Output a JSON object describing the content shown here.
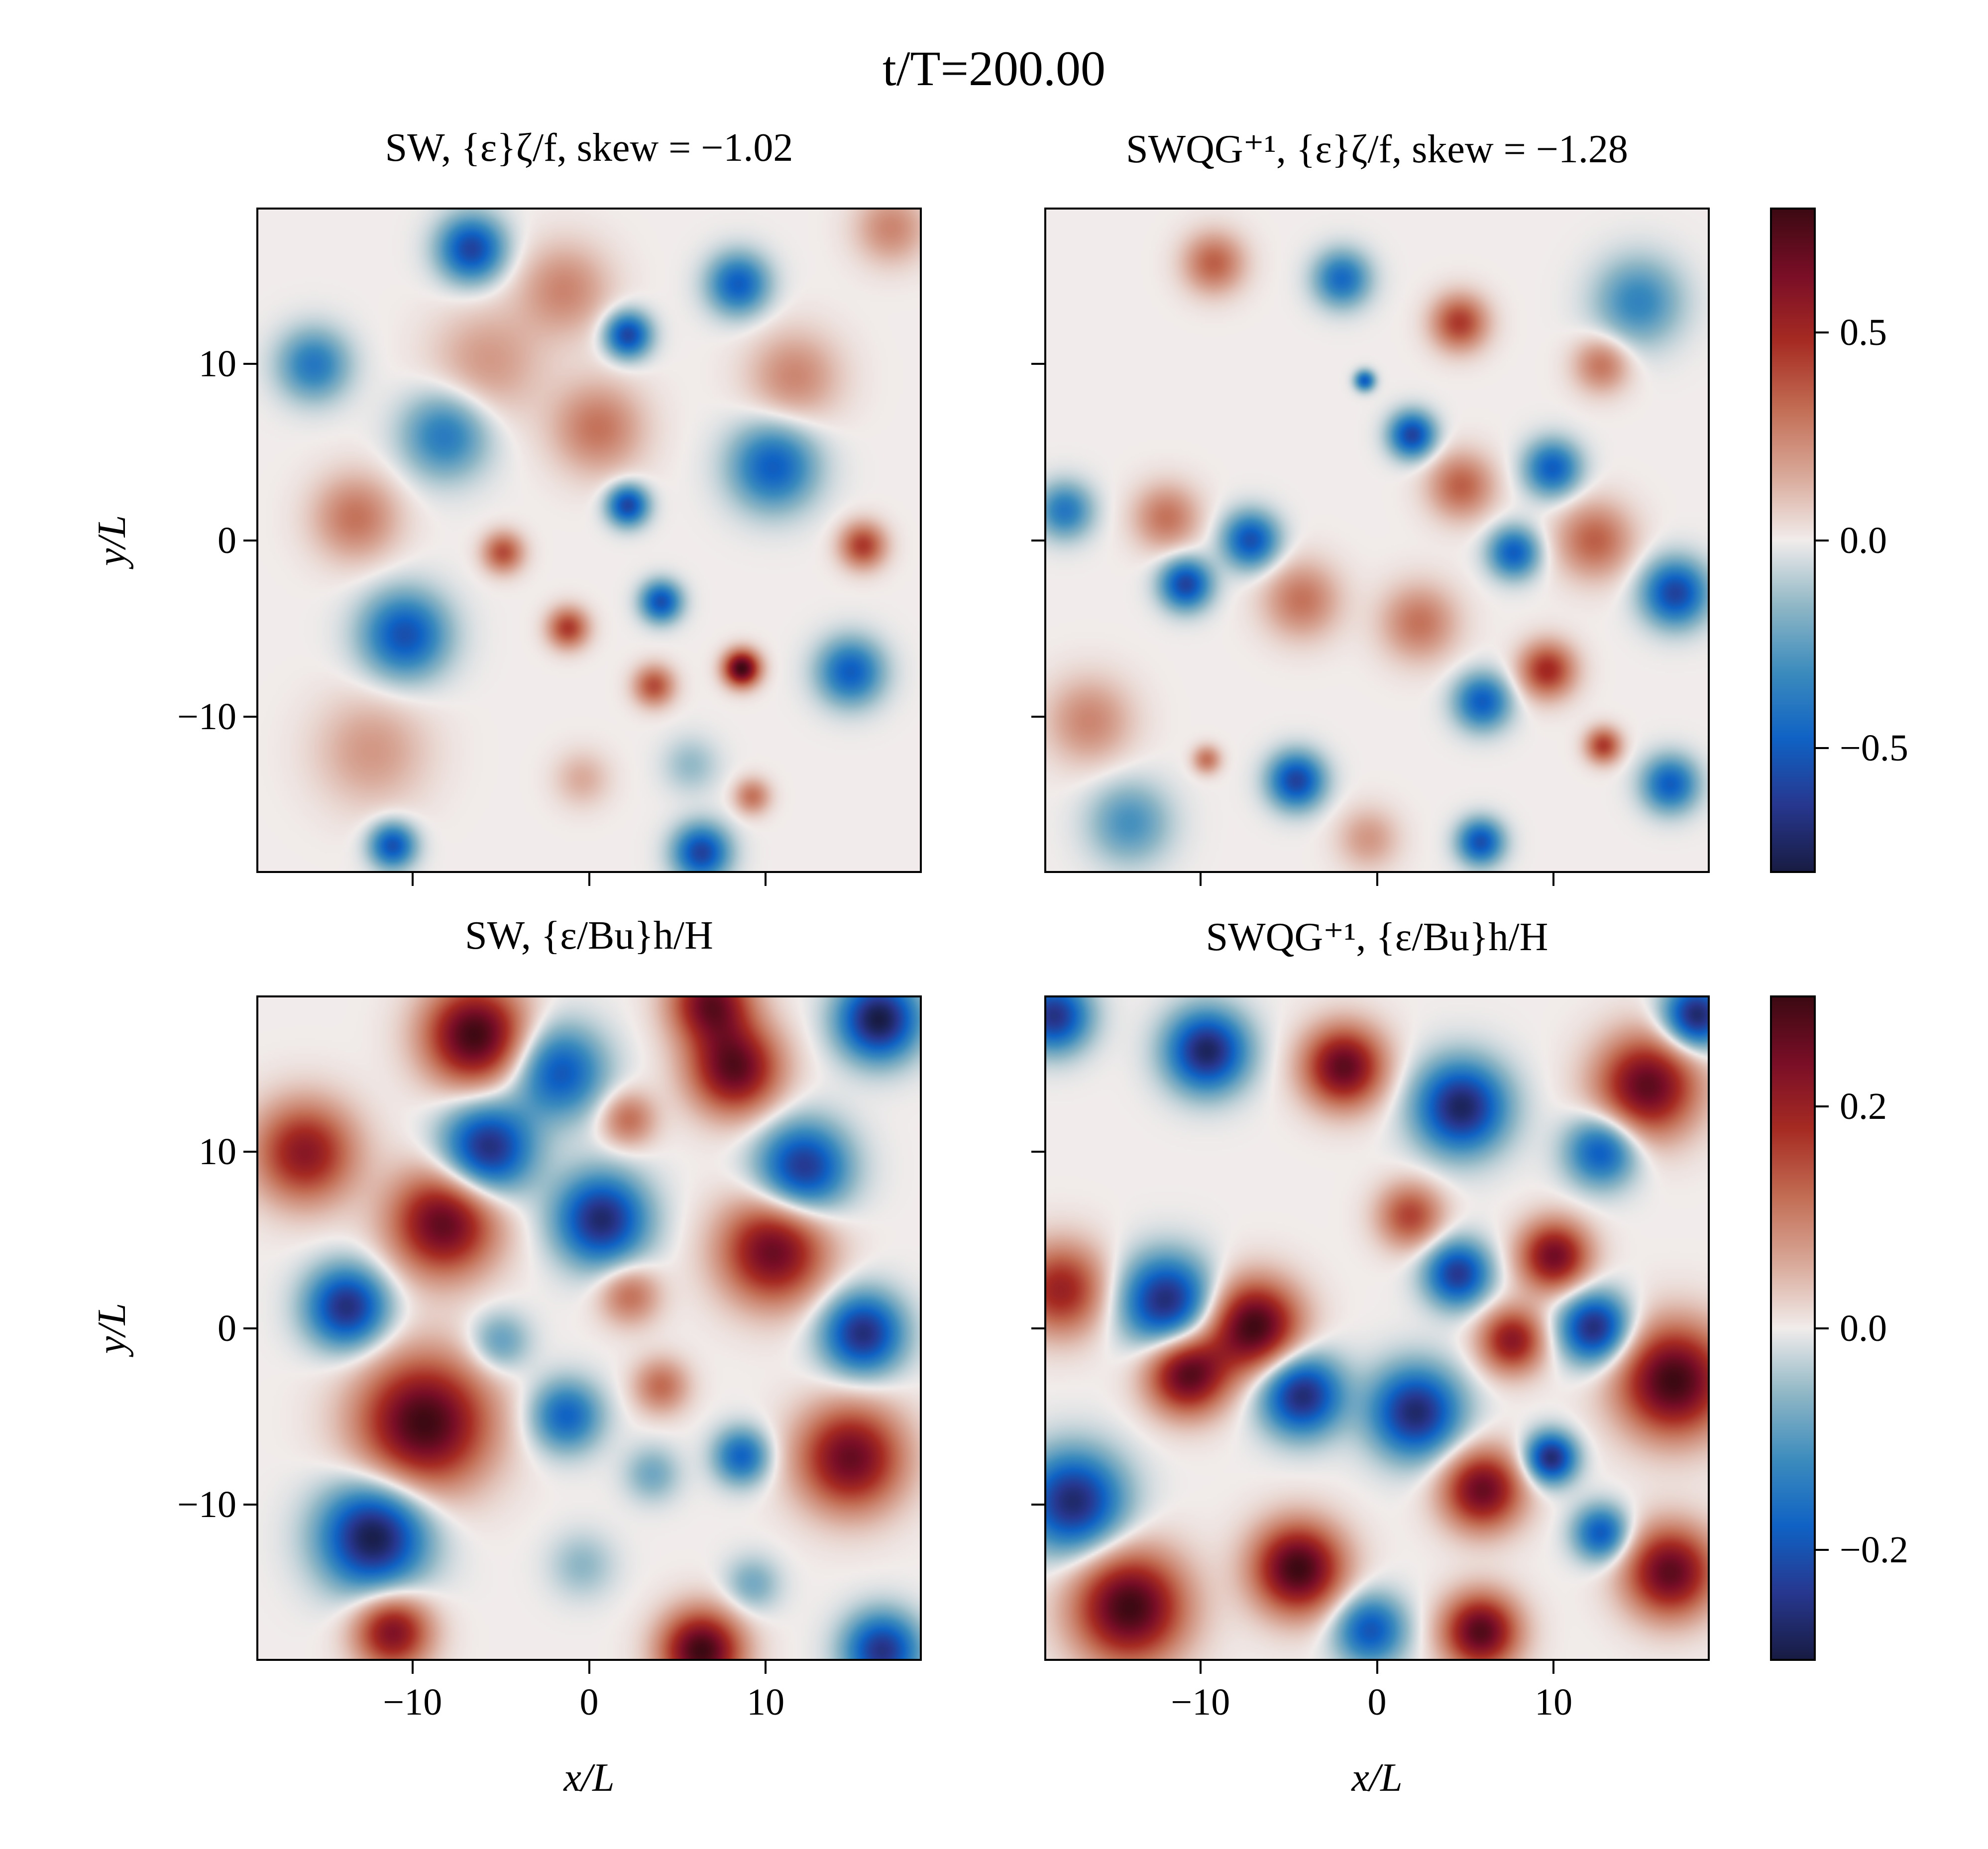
{
  "chart_data": {
    "type": "heatmap",
    "title": "t/T=200.00",
    "panels": [
      {
        "id": "tl",
        "title": "SW, {ε}ζ/f, skew = −1.02",
        "xlabel": "",
        "ylabel": "y/L",
        "xlim": [
          -18.85,
          18.85
        ],
        "ylim": [
          -18.85,
          18.85
        ],
        "xticks": [
          -10,
          0,
          10
        ],
        "xtick_labels": [],
        "yticks": [
          -10,
          0,
          10
        ],
        "ytick_labels": [
          "−10",
          "0",
          "10"
        ],
        "colorbar": 0,
        "features": [
          [
            -6.7,
            16.6,
            -0.6,
            1.3
          ],
          [
            -1.4,
            14.3,
            0.25,
            1.8
          ],
          [
            8.5,
            14.6,
            -0.5,
            1.2
          ],
          [
            17.2,
            17.8,
            0.25,
            1.4
          ],
          [
            2.2,
            11.7,
            -0.6,
            0.9
          ],
          [
            -15.7,
            10,
            -0.4,
            1.4
          ],
          [
            -5.8,
            10.1,
            0.2,
            2.2
          ],
          [
            11.7,
            9.3,
            0.25,
            1.8
          ],
          [
            -8.2,
            6,
            -0.4,
            1.7
          ],
          [
            0.5,
            6.4,
            0.3,
            1.8
          ],
          [
            10.5,
            4.2,
            -0.5,
            1.7
          ],
          [
            2.2,
            2,
            -0.6,
            0.8
          ],
          [
            -13.3,
            1.3,
            0.3,
            1.7
          ],
          [
            -4.9,
            -0.7,
            0.4,
            0.8
          ],
          [
            15.6,
            -0.3,
            0.45,
            0.9
          ],
          [
            -10.5,
            -5.4,
            -0.55,
            1.7
          ],
          [
            -1.2,
            -5,
            0.45,
            0.8
          ],
          [
            4.1,
            -3.5,
            -0.55,
            0.8
          ],
          [
            8.7,
            -7.3,
            0.8,
            0.7
          ],
          [
            3.7,
            -8.3,
            0.4,
            0.8
          ],
          [
            14.9,
            -7.5,
            -0.5,
            1.3
          ],
          [
            -12.4,
            -12,
            0.2,
            2.2
          ],
          [
            -0.4,
            -13.6,
            0.15,
            1.1
          ],
          [
            9.3,
            -14.6,
            0.3,
            0.7
          ],
          [
            -11.2,
            -17.4,
            -0.55,
            0.9
          ],
          [
            6.4,
            -17.8,
            -0.6,
            1.1
          ],
          [
            5.8,
            -12.8,
            -0.15,
            1.1
          ]
        ]
      },
      {
        "id": "tr",
        "title": "SWQG⁺¹, {ε}ζ/f, skew = −1.28",
        "xlabel": "",
        "ylabel": "",
        "xlim": [
          -18.85,
          18.85
        ],
        "ylim": [
          -18.85,
          18.85
        ],
        "xticks": [
          -10,
          0,
          10
        ],
        "xtick_labels": [],
        "yticks": [
          -10,
          0,
          10
        ],
        "ytick_labels": [],
        "colorbar": 0,
        "features": [
          [
            -9.3,
            15.8,
            0.35,
            1.2
          ],
          [
            -2,
            14.9,
            -0.45,
            1.1
          ],
          [
            14.9,
            13.6,
            -0.35,
            1.7
          ],
          [
            4.7,
            12.4,
            0.45,
            1.1
          ],
          [
            12.8,
            10,
            0.3,
            1.1
          ],
          [
            -0.7,
            9.1,
            -0.5,
            0.4
          ],
          [
            2,
            6,
            -0.6,
            0.9
          ],
          [
            10,
            4.1,
            -0.5,
            1.1
          ],
          [
            4.8,
            3.1,
            0.35,
            1.3
          ],
          [
            -12,
            1.3,
            0.3,
            1.3
          ],
          [
            -17.8,
            1.7,
            -0.4,
            1.1
          ],
          [
            -7.2,
            0,
            -0.55,
            1.1
          ],
          [
            12.4,
            0,
            0.35,
            1.5
          ],
          [
            7.8,
            -0.7,
            -0.5,
            1
          ],
          [
            -10.9,
            -2.5,
            -0.6,
            1
          ],
          [
            -4.3,
            -3.4,
            0.3,
            1.5
          ],
          [
            2.4,
            -4.7,
            0.3,
            1.5
          ],
          [
            17,
            -3,
            -0.6,
            1.3
          ],
          [
            9.7,
            -7.4,
            0.5,
            1.1
          ],
          [
            6,
            -9.2,
            -0.5,
            1.1
          ],
          [
            -16.4,
            -10.3,
            0.25,
            1.7
          ],
          [
            12.9,
            -11.7,
            0.45,
            0.7
          ],
          [
            -9.7,
            -12.5,
            0.3,
            0.55
          ],
          [
            -4.6,
            -13.7,
            -0.6,
            1.1
          ],
          [
            16.7,
            -13.9,
            -0.5,
            1.1
          ],
          [
            -14.1,
            -16.1,
            -0.3,
            1.6
          ],
          [
            -0.5,
            -17,
            0.2,
            1.2
          ],
          [
            5.9,
            -17.2,
            -0.55,
            0.9
          ]
        ]
      },
      {
        "id": "bl",
        "title": "SW, {ε/Bu}h/H",
        "xlabel": "x/L",
        "ylabel": "y/L",
        "xlim": [
          -18.85,
          18.85
        ],
        "ylim": [
          -18.85,
          18.85
        ],
        "xticks": [
          -10,
          0,
          10
        ],
        "xtick_labels": [
          "−10",
          "0",
          "10"
        ],
        "yticks": [
          -10,
          0,
          10
        ],
        "ytick_labels": [
          "−10",
          "0",
          "10"
        ],
        "colorbar": 1,
        "features": [
          [
            -6.5,
            16.7,
            0.3,
            2
          ],
          [
            6.9,
            18.6,
            0.25,
            1.6
          ],
          [
            8.3,
            14.8,
            0.27,
            1.8
          ],
          [
            16.5,
            17.6,
            -0.3,
            1.6
          ],
          [
            -1.7,
            14.6,
            -0.2,
            1.8
          ],
          [
            -16.2,
            10,
            0.22,
            2
          ],
          [
            -5.8,
            10.2,
            -0.27,
            1.8
          ],
          [
            2.2,
            11.9,
            0.12,
            1.1
          ],
          [
            12.2,
            9.1,
            -0.25,
            1.8
          ],
          [
            -8.3,
            6,
            0.27,
            2.1
          ],
          [
            0.7,
            6.2,
            -0.27,
            1.8
          ],
          [
            10.5,
            4.4,
            0.26,
            2.1
          ],
          [
            -13.8,
            1.2,
            -0.26,
            1.6
          ],
          [
            2.3,
            1.9,
            0.12,
            1.2
          ],
          [
            15.6,
            -0.3,
            -0.26,
            1.6
          ],
          [
            -5.1,
            -0.8,
            -0.1,
            1.2
          ],
          [
            4.1,
            -3.3,
            0.12,
            1.1
          ],
          [
            -9.4,
            -5.4,
            0.3,
            2.6
          ],
          [
            -1.3,
            -5,
            -0.18,
            1.4
          ],
          [
            8.7,
            -7.3,
            -0.18,
            1.1
          ],
          [
            14.9,
            -7.4,
            0.26,
            2.1
          ],
          [
            3.6,
            -8.3,
            -0.08,
            1.1
          ],
          [
            -12.3,
            -11.9,
            -0.3,
            2.1
          ],
          [
            -0.4,
            -13.5,
            -0.06,
            1.3
          ],
          [
            9.3,
            -14.6,
            -0.08,
            1.1
          ],
          [
            -11.2,
            -17.3,
            0.24,
            1.5
          ],
          [
            6.4,
            -18.4,
            0.3,
            1.6
          ],
          [
            16.7,
            -18.4,
            -0.25,
            1.5
          ]
        ]
      },
      {
        "id": "br",
        "title": "SWQG⁺¹, {ε/Bu}h/H",
        "xlabel": "x/L",
        "ylabel": "",
        "xlim": [
          -18.85,
          18.85
        ],
        "ylim": [
          -18.85,
          18.85
        ],
        "xticks": [
          -10,
          0,
          10
        ],
        "xtick_labels": [
          "−10",
          "0",
          "10"
        ],
        "yticks": [
          -10,
          0,
          10
        ],
        "ytick_labels": [],
        "colorbar": 1,
        "features": [
          [
            -18.4,
            17.8,
            -0.25,
            1.4
          ],
          [
            -9.7,
            15.8,
            -0.28,
            1.6
          ],
          [
            -1.9,
            14.9,
            0.27,
            1.6
          ],
          [
            18.2,
            17.8,
            -0.28,
            1.3
          ],
          [
            15.4,
            13.8,
            0.27,
            2
          ],
          [
            4.8,
            12.6,
            -0.28,
            1.8
          ],
          [
            12.8,
            10.1,
            -0.2,
            1.4
          ],
          [
            1.9,
            6.4,
            0.16,
            1.3
          ],
          [
            10.1,
            4.1,
            0.25,
            1.4
          ],
          [
            4.6,
            3.1,
            -0.24,
            1.3
          ],
          [
            -18,
            2.2,
            0.2,
            1.8
          ],
          [
            -12,
            1.5,
            -0.27,
            1.8
          ],
          [
            -7,
            0.1,
            0.3,
            1.8
          ],
          [
            7.7,
            -0.7,
            0.22,
            1.3
          ],
          [
            12.4,
            0,
            -0.27,
            1.4
          ],
          [
            -10.8,
            -2.6,
            0.28,
            1.6
          ],
          [
            -4.3,
            -3.8,
            -0.27,
            1.6
          ],
          [
            2.2,
            -4.8,
            -0.27,
            1.8
          ],
          [
            16.9,
            -3,
            0.3,
            2.2
          ],
          [
            9.9,
            -7.4,
            -0.27,
            1
          ],
          [
            6,
            -9.2,
            0.26,
            1.6
          ],
          [
            -17.3,
            -9.9,
            -0.27,
            2
          ],
          [
            -4.5,
            -13.7,
            0.3,
            1.8
          ],
          [
            12.8,
            -11.7,
            -0.2,
            1.1
          ],
          [
            16.7,
            -13.9,
            0.27,
            1.8
          ],
          [
            -14.1,
            -15.9,
            0.3,
            2.2
          ],
          [
            -0.4,
            -17.2,
            -0.2,
            1.4
          ],
          [
            5.9,
            -17.3,
            0.28,
            1.5
          ]
        ]
      }
    ],
    "feature_format": [
      "x/L",
      "y/L",
      "amplitude",
      "radius"
    ],
    "colorbars": [
      {
        "range": [
          -0.8,
          0.8
        ],
        "ticks": [
          0.5,
          0.0,
          -0.5
        ],
        "tick_labels": [
          "0.5",
          "0.0",
          "−0.5"
        ]
      },
      {
        "range": [
          -0.3,
          0.3
        ],
        "ticks": [
          0.2,
          0.0,
          -0.2
        ],
        "tick_labels": [
          "0.2",
          "0.0",
          "−0.2"
        ]
      }
    ],
    "colormap": [
      "#181c43",
      "#27378f",
      "#0f62c4",
      "#3b8bbd",
      "#8eb6c5",
      "#f1eceb",
      "#d8a797",
      "#c26c53",
      "#a62b22",
      "#7a0e27",
      "#3c0912"
    ]
  }
}
